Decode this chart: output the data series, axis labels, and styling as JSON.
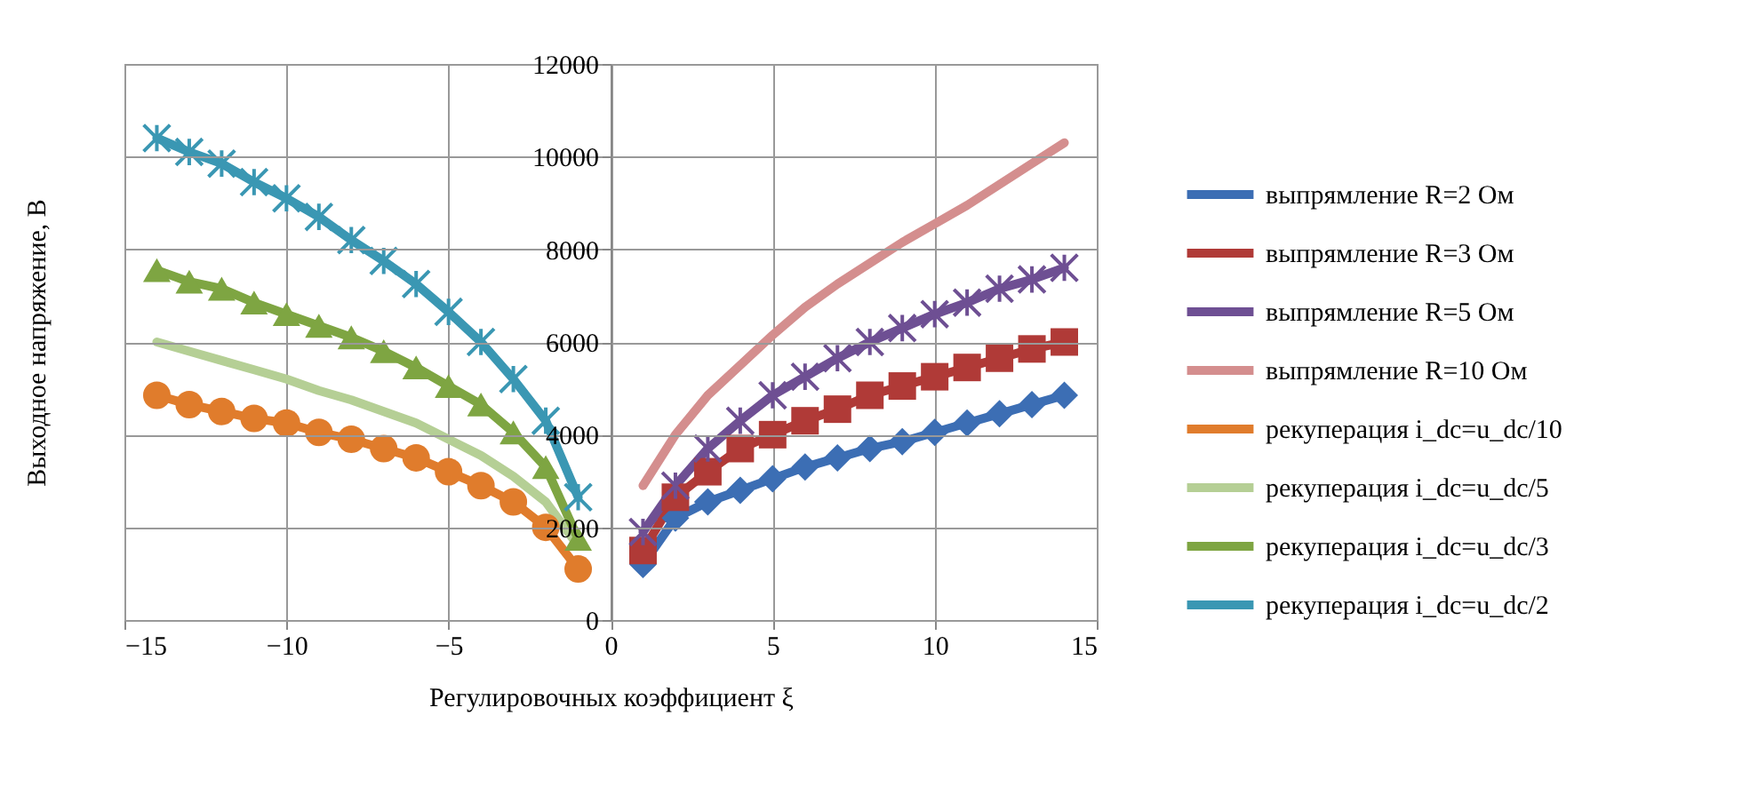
{
  "chart_data": {
    "type": "line",
    "xlabel": "Регулировочных коэффициент ξ",
    "ylabel": "Выходное напряжение, В",
    "xlim": [
      -15,
      15
    ],
    "xticks": [
      -15,
      -10,
      -5,
      0,
      5,
      10,
      15
    ],
    "ylim": [
      0,
      12000
    ],
    "yticks": [
      0,
      2000,
      4000,
      6000,
      8000,
      10000,
      12000
    ],
    "grid": true,
    "legend": "right",
    "line_style": "solid",
    "series": [
      {
        "name": "выпрямление R=2 Ом",
        "color": "#3c6eb4",
        "marker": "diamond",
        "x": [
          1,
          2,
          3,
          4,
          5,
          6,
          7,
          8,
          9,
          10,
          11,
          12,
          13,
          14
        ],
        "values": [
          1200,
          2200,
          2550,
          2800,
          3050,
          3300,
          3500,
          3700,
          3850,
          4050,
          4250,
          4450,
          4650,
          4850
        ]
      },
      {
        "name": "выпрямление R=3 Ом",
        "color": "#b03a37",
        "marker": "square",
        "x": [
          1,
          2,
          3,
          4,
          5,
          6,
          7,
          8,
          9,
          10,
          11,
          12,
          13,
          14
        ],
        "values": [
          1500,
          2650,
          3200,
          3700,
          4000,
          4300,
          4550,
          4850,
          5050,
          5250,
          5450,
          5650,
          5850,
          6000
        ]
      },
      {
        "name": "выпрямление R=5 Ом",
        "color": "#6e4f93",
        "marker": "cross",
        "x": [
          1,
          2,
          3,
          4,
          5,
          6,
          7,
          8,
          9,
          10,
          11,
          12,
          13,
          14
        ],
        "values": [
          1900,
          2900,
          3700,
          4300,
          4850,
          5250,
          5650,
          6000,
          6300,
          6600,
          6850,
          7150,
          7350,
          7600
        ]
      },
      {
        "name": "выпрямление R=10 Ом",
        "color": "#d48e8e",
        "marker": "none",
        "x": [
          1,
          2,
          3,
          4,
          5,
          6,
          7,
          8,
          9,
          10,
          11,
          12,
          13,
          14
        ],
        "values": [
          2900,
          4000,
          4850,
          5500,
          6150,
          6750,
          7250,
          7700,
          8150,
          8550,
          8950,
          9400,
          9850,
          10300
        ]
      },
      {
        "name": "рекуперация i_dc=u_dc/10",
        "color": "#e07c2c",
        "marker": "circle",
        "x": [
          -14,
          -13,
          -12,
          -11,
          -10,
          -9,
          -8,
          -7,
          -6,
          -5,
          -4,
          -3,
          -2,
          -1
        ],
        "values": [
          4850,
          4650,
          4500,
          4350,
          4250,
          4050,
          3900,
          3700,
          3500,
          3200,
          2900,
          2550,
          2000,
          1100
        ]
      },
      {
        "name": "рекуперация i_dc=u_dc/5",
        "color": "#b5cf95",
        "marker": "none",
        "x": [
          -14,
          -13,
          -12,
          -11,
          -10,
          -9,
          -8,
          -7,
          -6,
          -5,
          -4,
          -3,
          -2,
          -1
        ],
        "values": [
          6000,
          5800,
          5600,
          5400,
          5200,
          4950,
          4750,
          4500,
          4250,
          3900,
          3550,
          3100,
          2550,
          1600
        ]
      },
      {
        "name": "рекуперация i_dc=u_dc/3",
        "color": "#7ea542",
        "marker": "triangle",
        "x": [
          -14,
          -13,
          -12,
          -11,
          -10,
          -9,
          -8,
          -7,
          -6,
          -5,
          -4,
          -3,
          -2,
          -1
        ],
        "values": [
          7550,
          7300,
          7150,
          6850,
          6600,
          6350,
          6100,
          5800,
          5450,
          5050,
          4650,
          4050,
          3300,
          1750
        ]
      },
      {
        "name": "рекуперация i_dc=u_dc/2",
        "color": "#3a97b3",
        "marker": "cross",
        "x": [
          -14,
          -13,
          -12,
          -11,
          -10,
          -9,
          -8,
          -7,
          -6,
          -5,
          -4,
          -3,
          -2,
          -1
        ],
        "values": [
          10400,
          10100,
          9850,
          9450,
          9100,
          8700,
          8200,
          7750,
          7250,
          6650,
          6000,
          5200,
          4300,
          2650
        ]
      }
    ]
  }
}
